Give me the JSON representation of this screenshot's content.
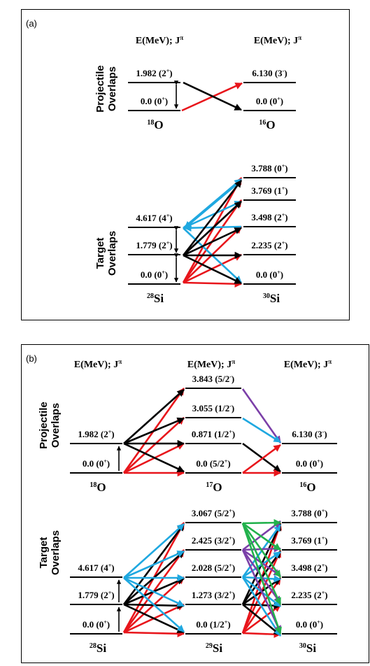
{
  "colors": {
    "black": "#000000",
    "red": "#e8151b",
    "blue": "#1fa8e0",
    "purple": "#7b3fa8",
    "green": "#22b14c"
  },
  "panel_a": {
    "label": "(a)",
    "header_left": "E(MeV); Jπ",
    "header_right": "E(MeV); Jπ",
    "projectile_label": [
      "Projectile",
      "Overlaps"
    ],
    "target_label": [
      "Target",
      "Overlaps"
    ],
    "nuclei": [
      {
        "id": "o18",
        "mass": "18",
        "symbol": "O"
      },
      {
        "id": "o16",
        "mass": "16",
        "symbol": "O"
      },
      {
        "id": "si28",
        "mass": "28",
        "symbol": "Si"
      },
      {
        "id": "si30",
        "mass": "30",
        "symbol": "Si"
      }
    ],
    "levels": {
      "o18": [
        {
          "e": "1.982",
          "j": "2",
          "p": "+"
        },
        {
          "e": "0.0",
          "j": "0",
          "p": "+"
        }
      ],
      "o16": [
        {
          "e": "6.130",
          "j": "3",
          "p": "-"
        },
        {
          "e": "0.0",
          "j": "0",
          "p": "+"
        }
      ],
      "si28": [
        {
          "e": "4.617",
          "j": "4",
          "p": "+"
        },
        {
          "e": "1.779",
          "j": "2",
          "p": "+"
        },
        {
          "e": "0.0",
          "j": "0",
          "p": "+"
        }
      ],
      "si30": [
        {
          "e": "3.788",
          "j": "0",
          "p": "+"
        },
        {
          "e": "3.769",
          "j": "1",
          "p": "+"
        },
        {
          "e": "3.498",
          "j": "2",
          "p": "+"
        },
        {
          "e": "2.235",
          "j": "2",
          "p": "+"
        },
        {
          "e": "0.0",
          "j": "0",
          "p": "+"
        }
      ]
    }
  },
  "panel_b": {
    "label": "(b)",
    "header_left": "E(MeV); Jπ",
    "header_mid": "E(MeV); Jπ",
    "header_right": "E(MeV); Jπ",
    "projectile_label": [
      "Projectile",
      "Overlaps"
    ],
    "target_label": [
      "Target",
      "Overlaps"
    ],
    "nuclei": [
      {
        "id": "o18",
        "mass": "18",
        "symbol": "O"
      },
      {
        "id": "o17",
        "mass": "17",
        "symbol": "O"
      },
      {
        "id": "o16",
        "mass": "16",
        "symbol": "O"
      },
      {
        "id": "si28",
        "mass": "28",
        "symbol": "Si"
      },
      {
        "id": "si29",
        "mass": "29",
        "symbol": "Si"
      },
      {
        "id": "si30",
        "mass": "30",
        "symbol": "Si"
      }
    ],
    "levels": {
      "o18": [
        {
          "e": "1.982",
          "j": "2",
          "p": "+"
        },
        {
          "e": "0.0",
          "j": "0",
          "p": "+"
        }
      ],
      "o17": [
        {
          "e": "3.843",
          "j": "5/2",
          "p": "-"
        },
        {
          "e": "3.055",
          "j": "1/2",
          "p": "-"
        },
        {
          "e": "0.871",
          "j": "1/2",
          "p": "+"
        },
        {
          "e": "0.0",
          "j": "5/2",
          "p": "+"
        }
      ],
      "o16": [
        {
          "e": "6.130",
          "j": "3",
          "p": "-"
        },
        {
          "e": "0.0",
          "j": "0",
          "p": "+"
        }
      ],
      "si28": [
        {
          "e": "4.617",
          "j": "4",
          "p": "+"
        },
        {
          "e": "1.779",
          "j": "2",
          "p": "+"
        },
        {
          "e": "0.0",
          "j": "0",
          "p": "+"
        }
      ],
      "si29": [
        {
          "e": "3.067",
          "j": "5/2",
          "p": "+"
        },
        {
          "e": "2.425",
          "j": "3/2",
          "p": "+"
        },
        {
          "e": "2.028",
          "j": "5/2",
          "p": "+"
        },
        {
          "e": "1.273",
          "j": "3/2",
          "p": "+"
        },
        {
          "e": "0.0",
          "j": "1/2",
          "p": "+"
        }
      ],
      "si30": [
        {
          "e": "3.788",
          "j": "0",
          "p": "+"
        },
        {
          "e": "3.769",
          "j": "1",
          "p": "+"
        },
        {
          "e": "3.498",
          "j": "2",
          "p": "+"
        },
        {
          "e": "2.235",
          "j": "2",
          "p": "+"
        },
        {
          "e": "0.0",
          "j": "0",
          "p": "+"
        }
      ]
    }
  }
}
